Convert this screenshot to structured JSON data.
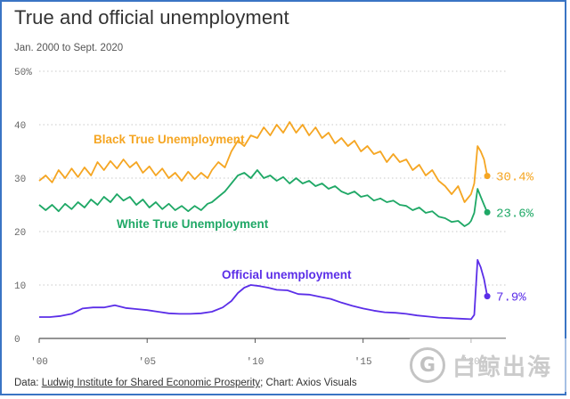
{
  "title": "True and official unemployment",
  "subtitle": "Jan. 2000 to Sept. 2020",
  "source": {
    "prefix": "Data: ",
    "link": "Ludwig Institute for Shared Economic Prosperity",
    "suffix": "; Chart: Axios Visuals"
  },
  "watermark": {
    "logo_icon": "G-circle-logo-icon",
    "text": "白鲸出海"
  },
  "chart_data": {
    "type": "line",
    "title": "True and official unemployment",
    "subtitle": "Jan. 2000 to Sept. 2020",
    "xlim": [
      2000,
      2021.2
    ],
    "ylim": [
      0,
      50
    ],
    "y_ticks": [
      {
        "value": 0,
        "label": "0"
      },
      {
        "value": 10,
        "label": "10"
      },
      {
        "value": 20,
        "label": "20"
      },
      {
        "value": 30,
        "label": "30"
      },
      {
        "value": 40,
        "label": "40"
      },
      {
        "value": 50,
        "label": "50%"
      }
    ],
    "x_ticks": [
      {
        "value": 2000,
        "label": "'00"
      },
      {
        "value": 2005,
        "label": "'05"
      },
      {
        "value": 2010,
        "label": "'10"
      },
      {
        "value": 2015,
        "label": "'15"
      },
      {
        "value": 2020,
        "label": "'20"
      }
    ],
    "grid": "horizontal dotted",
    "series": [
      {
        "name": "Black True Unemployment",
        "color": "#f5a623",
        "end_label": "30.4%",
        "points": [
          [
            2000.0,
            29.5
          ],
          [
            2000.3,
            30.5
          ],
          [
            2000.6,
            29.2
          ],
          [
            2000.9,
            31.5
          ],
          [
            2001.2,
            30.0
          ],
          [
            2001.5,
            31.8
          ],
          [
            2001.8,
            30.2
          ],
          [
            2002.1,
            32.0
          ],
          [
            2002.4,
            30.5
          ],
          [
            2002.7,
            33.0
          ],
          [
            2003.0,
            31.5
          ],
          [
            2003.3,
            33.2
          ],
          [
            2003.6,
            31.8
          ],
          [
            2003.9,
            33.5
          ],
          [
            2004.2,
            32.0
          ],
          [
            2004.5,
            33.0
          ],
          [
            2004.8,
            31.0
          ],
          [
            2005.1,
            32.2
          ],
          [
            2005.4,
            30.5
          ],
          [
            2005.7,
            31.8
          ],
          [
            2006.0,
            30.0
          ],
          [
            2006.3,
            31.0
          ],
          [
            2006.6,
            29.5
          ],
          [
            2006.9,
            31.2
          ],
          [
            2007.2,
            29.8
          ],
          [
            2007.5,
            31.0
          ],
          [
            2007.8,
            30.0
          ],
          [
            2008.0,
            31.5
          ],
          [
            2008.3,
            33.0
          ],
          [
            2008.6,
            32.0
          ],
          [
            2008.9,
            35.0
          ],
          [
            2009.2,
            37.0
          ],
          [
            2009.5,
            36.0
          ],
          [
            2009.8,
            38.0
          ],
          [
            2010.1,
            37.5
          ],
          [
            2010.4,
            39.5
          ],
          [
            2010.7,
            38.0
          ],
          [
            2011.0,
            40.0
          ],
          [
            2011.3,
            38.5
          ],
          [
            2011.6,
            40.5
          ],
          [
            2011.9,
            38.5
          ],
          [
            2012.2,
            40.0
          ],
          [
            2012.5,
            38.0
          ],
          [
            2012.8,
            39.5
          ],
          [
            2013.1,
            37.5
          ],
          [
            2013.4,
            38.5
          ],
          [
            2013.7,
            36.5
          ],
          [
            2014.0,
            37.5
          ],
          [
            2014.3,
            36.0
          ],
          [
            2014.6,
            37.0
          ],
          [
            2014.9,
            35.0
          ],
          [
            2015.2,
            36.0
          ],
          [
            2015.5,
            34.5
          ],
          [
            2015.8,
            35.0
          ],
          [
            2016.1,
            33.0
          ],
          [
            2016.4,
            34.5
          ],
          [
            2016.7,
            33.0
          ],
          [
            2017.0,
            33.5
          ],
          [
            2017.3,
            31.5
          ],
          [
            2017.6,
            32.5
          ],
          [
            2017.9,
            30.5
          ],
          [
            2018.2,
            31.5
          ],
          [
            2018.5,
            29.5
          ],
          [
            2018.8,
            28.5
          ],
          [
            2019.1,
            27.0
          ],
          [
            2019.4,
            28.5
          ],
          [
            2019.7,
            25.5
          ],
          [
            2019.9,
            26.5
          ],
          [
            2020.0,
            27.0
          ],
          [
            2020.15,
            29.0
          ],
          [
            2020.3,
            36.0
          ],
          [
            2020.45,
            35.0
          ],
          [
            2020.6,
            33.5
          ],
          [
            2020.75,
            30.4
          ]
        ]
      },
      {
        "name": "White True Unemployment",
        "color": "#1fa866",
        "end_label": "23.6%",
        "points": [
          [
            2000.0,
            25.0
          ],
          [
            2000.3,
            24.0
          ],
          [
            2000.6,
            25.0
          ],
          [
            2000.9,
            23.8
          ],
          [
            2001.2,
            25.2
          ],
          [
            2001.5,
            24.2
          ],
          [
            2001.8,
            25.5
          ],
          [
            2002.1,
            24.5
          ],
          [
            2002.4,
            26.0
          ],
          [
            2002.7,
            25.0
          ],
          [
            2003.0,
            26.5
          ],
          [
            2003.3,
            25.5
          ],
          [
            2003.6,
            27.0
          ],
          [
            2003.9,
            25.8
          ],
          [
            2004.2,
            26.5
          ],
          [
            2004.5,
            25.0
          ],
          [
            2004.8,
            26.0
          ],
          [
            2005.1,
            24.5
          ],
          [
            2005.4,
            25.5
          ],
          [
            2005.7,
            24.2
          ],
          [
            2006.0,
            25.2
          ],
          [
            2006.3,
            24.0
          ],
          [
            2006.6,
            24.8
          ],
          [
            2006.9,
            23.8
          ],
          [
            2007.2,
            24.8
          ],
          [
            2007.5,
            24.0
          ],
          [
            2007.8,
            25.2
          ],
          [
            2008.0,
            25.5
          ],
          [
            2008.3,
            26.5
          ],
          [
            2008.6,
            27.5
          ],
          [
            2008.9,
            29.0
          ],
          [
            2009.2,
            30.5
          ],
          [
            2009.5,
            31.0
          ],
          [
            2009.8,
            30.0
          ],
          [
            2010.1,
            31.5
          ],
          [
            2010.4,
            30.0
          ],
          [
            2010.7,
            30.5
          ],
          [
            2011.0,
            29.5
          ],
          [
            2011.3,
            30.2
          ],
          [
            2011.6,
            29.0
          ],
          [
            2011.9,
            30.0
          ],
          [
            2012.2,
            29.0
          ],
          [
            2012.5,
            29.5
          ],
          [
            2012.8,
            28.5
          ],
          [
            2013.1,
            29.0
          ],
          [
            2013.4,
            28.0
          ],
          [
            2013.7,
            28.5
          ],
          [
            2014.0,
            27.5
          ],
          [
            2014.3,
            27.0
          ],
          [
            2014.6,
            27.5
          ],
          [
            2014.9,
            26.5
          ],
          [
            2015.2,
            26.8
          ],
          [
            2015.5,
            25.8
          ],
          [
            2015.8,
            26.2
          ],
          [
            2016.1,
            25.5
          ],
          [
            2016.4,
            25.8
          ],
          [
            2016.7,
            25.0
          ],
          [
            2017.0,
            24.8
          ],
          [
            2017.3,
            24.0
          ],
          [
            2017.6,
            24.5
          ],
          [
            2017.9,
            23.5
          ],
          [
            2018.2,
            23.8
          ],
          [
            2018.5,
            22.8
          ],
          [
            2018.8,
            22.5
          ],
          [
            2019.1,
            21.8
          ],
          [
            2019.4,
            22.0
          ],
          [
            2019.7,
            21.0
          ],
          [
            2019.9,
            21.5
          ],
          [
            2020.0,
            22.0
          ],
          [
            2020.15,
            23.5
          ],
          [
            2020.3,
            28.0
          ],
          [
            2020.45,
            26.5
          ],
          [
            2020.6,
            25.0
          ],
          [
            2020.75,
            23.6
          ]
        ]
      },
      {
        "name": "Official unemployment",
        "color": "#5b2ee8",
        "end_label": "7.9%",
        "points": [
          [
            2000.0,
            4.0
          ],
          [
            2000.5,
            4.0
          ],
          [
            2001.0,
            4.2
          ],
          [
            2001.5,
            4.6
          ],
          [
            2002.0,
            5.6
          ],
          [
            2002.5,
            5.8
          ],
          [
            2003.0,
            5.8
          ],
          [
            2003.5,
            6.2
          ],
          [
            2004.0,
            5.7
          ],
          [
            2004.5,
            5.5
          ],
          [
            2005.0,
            5.3
          ],
          [
            2005.5,
            5.0
          ],
          [
            2006.0,
            4.7
          ],
          [
            2006.5,
            4.6
          ],
          [
            2007.0,
            4.6
          ],
          [
            2007.5,
            4.7
          ],
          [
            2008.0,
            5.0
          ],
          [
            2008.5,
            5.8
          ],
          [
            2008.9,
            7.0
          ],
          [
            2009.2,
            8.5
          ],
          [
            2009.5,
            9.5
          ],
          [
            2009.8,
            10.0
          ],
          [
            2010.2,
            9.8
          ],
          [
            2010.6,
            9.5
          ],
          [
            2011.0,
            9.1
          ],
          [
            2011.5,
            9.0
          ],
          [
            2012.0,
            8.3
          ],
          [
            2012.5,
            8.2
          ],
          [
            2013.0,
            7.8
          ],
          [
            2013.5,
            7.4
          ],
          [
            2014.0,
            6.7
          ],
          [
            2014.5,
            6.1
          ],
          [
            2015.0,
            5.6
          ],
          [
            2015.5,
            5.2
          ],
          [
            2016.0,
            4.9
          ],
          [
            2016.5,
            4.8
          ],
          [
            2017.0,
            4.6
          ],
          [
            2017.5,
            4.3
          ],
          [
            2018.0,
            4.1
          ],
          [
            2018.5,
            3.9
          ],
          [
            2019.0,
            3.8
          ],
          [
            2019.5,
            3.7
          ],
          [
            2020.0,
            3.6
          ],
          [
            2020.15,
            4.4
          ],
          [
            2020.3,
            14.7
          ],
          [
            2020.45,
            13.3
          ],
          [
            2020.6,
            11.1
          ],
          [
            2020.75,
            7.9
          ]
        ]
      }
    ],
    "annotations": [
      {
        "text": "Black True Unemployment",
        "series": 0
      },
      {
        "text": "White True Unemployment",
        "series": 1
      },
      {
        "text": "Official unemployment",
        "series": 2
      }
    ]
  }
}
